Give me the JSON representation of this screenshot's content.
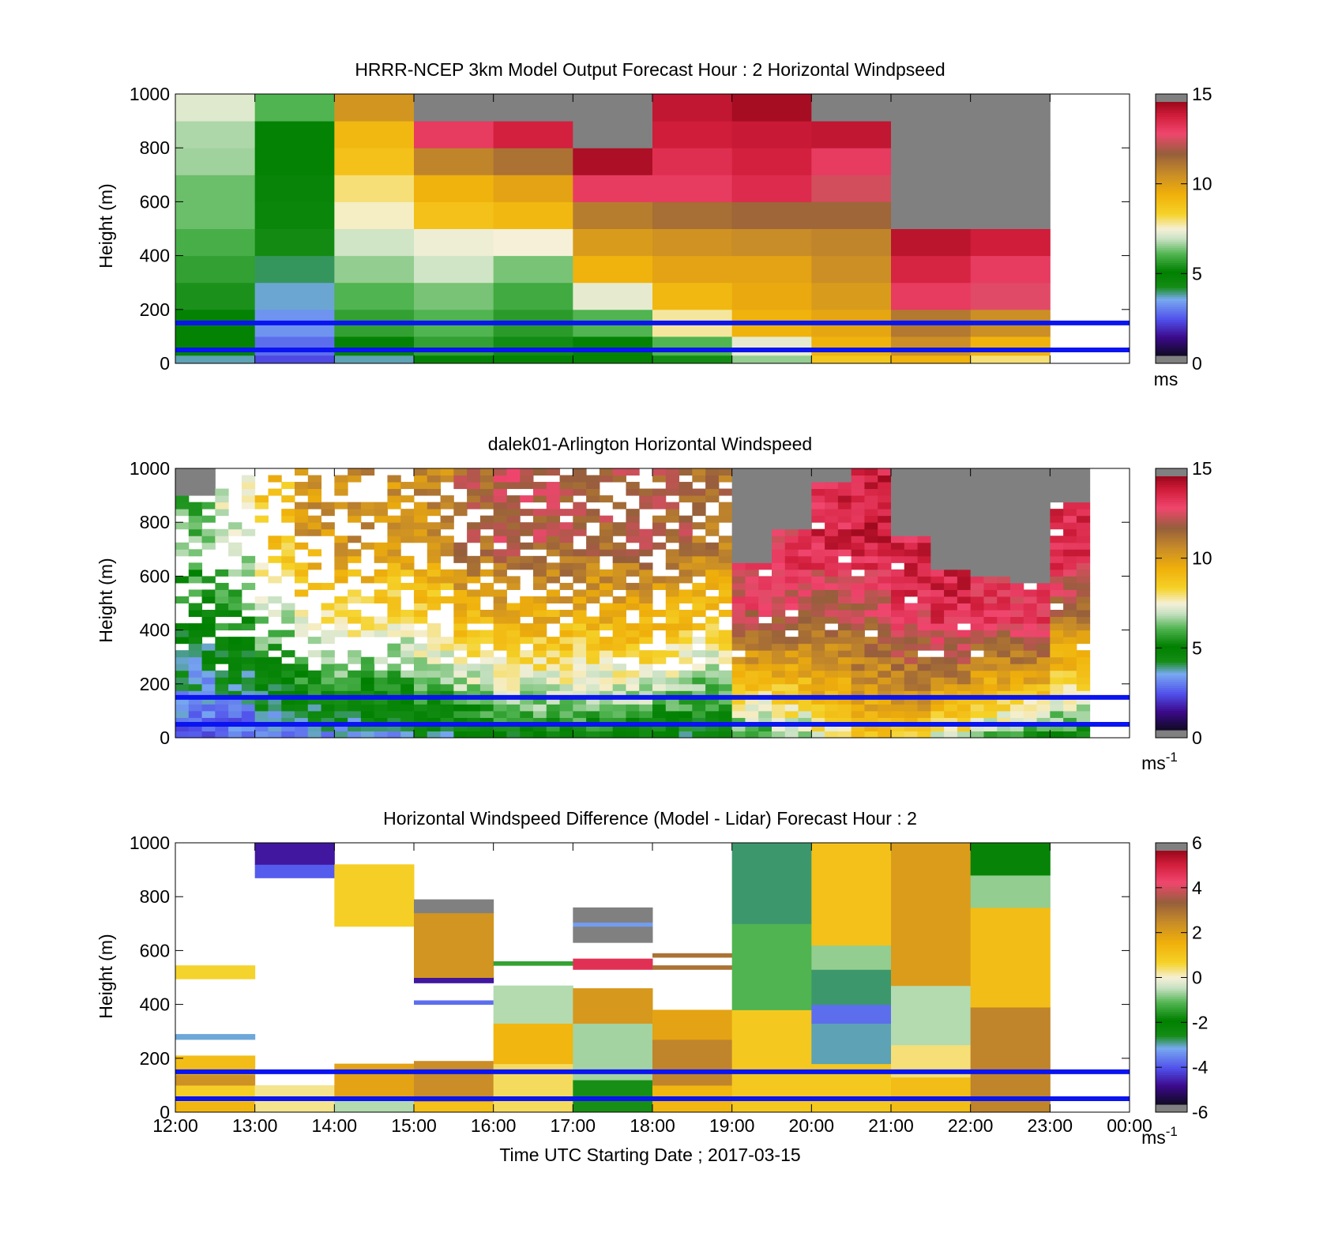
{
  "figure": {
    "xlabel": "Time UTC  Starting Date ; 2017-03-15",
    "xticks": [
      "12:00",
      "13:00",
      "14:00",
      "15:00",
      "16:00",
      "17:00",
      "18:00",
      "19:00",
      "20:00",
      "21:00",
      "22:00",
      "23:00",
      "00:00"
    ],
    "colors": {
      "line_marker": "#0a14f0",
      "missing": "#808080"
    }
  },
  "chart_data": [
    {
      "type": "heatmap",
      "title": "HRRR-NCEP 3km Model Output   Forecast Hour : 2 Horizontal Windpseed",
      "ylabel": "Height (m)",
      "ylim": [
        0,
        1000
      ],
      "yticks": [
        0,
        200,
        400,
        600,
        800,
        1000
      ],
      "xlim_hours": [
        12,
        24
      ],
      "colorbar": {
        "min": 0,
        "max": 15,
        "ticks": [
          0,
          5,
          10,
          15
        ],
        "unit": "ms"
      },
      "height_levels_m": [
        0,
        30,
        100,
        200,
        300,
        400,
        500,
        600,
        700,
        800,
        900,
        1000
      ],
      "columns": [
        {
          "start": "12:00",
          "values": [
            3.5,
            4.8,
            5.0,
            5.3,
            5.6,
            5.9,
            6.2,
            6.2,
            6.6,
            6.7,
            7.2
          ]
        },
        {
          "start": "13:00",
          "values": [
            2.0,
            2.5,
            3.0,
            3.4,
            3.8,
            4.1,
            4.5,
            4.6,
            4.8,
            5.0,
            6.0
          ]
        },
        {
          "start": "14:00",
          "values": [
            3.5,
            5.0,
            5.6,
            6.0,
            6.5,
            7.0,
            7.6,
            8.0,
            9.0,
            9.3,
            10.5
          ]
        },
        {
          "start": "15:00",
          "values": [
            5.0,
            5.6,
            6.0,
            6.3,
            7.0,
            7.4,
            9.0,
            9.5,
            11.0,
            13.5,
            null
          ]
        },
        {
          "start": "16:00",
          "values": [
            5.0,
            5.2,
            5.5,
            5.8,
            6.3,
            7.5,
            9.3,
            10.0,
            11.5,
            14.2,
            null
          ]
        },
        {
          "start": "17:00",
          "values": [
            5.0,
            4.8,
            6.0,
            7.3,
            9.5,
            10.3,
            11.2,
            13.5,
            14.8,
            null,
            null
          ]
        },
        {
          "start": "18:00",
          "values": [
            5.2,
            6.0,
            7.8,
            9.3,
            10.0,
            10.6,
            11.6,
            13.5,
            13.8,
            14.3,
            14.5
          ]
        },
        {
          "start": "19:00",
          "values": [
            6.5,
            7.3,
            9.5,
            9.8,
            10.0,
            10.8,
            11.8,
            13.9,
            14.2,
            14.4,
            14.9
          ]
        },
        {
          "start": "20:00",
          "values": [
            8.8,
            9.5,
            9.9,
            10.3,
            10.7,
            11.0,
            11.8,
            12.8,
            13.5,
            14.5,
            null
          ]
        },
        {
          "start": "21:00",
          "values": [
            9.5,
            10.7,
            11.3,
            13.5,
            14.1,
            14.6,
            null,
            null,
            null,
            null,
            null
          ]
        },
        {
          "start": "22:00",
          "values": [
            8.0,
            9.5,
            10.7,
            13.0,
            13.5,
            14.3,
            null,
            null,
            null,
            null,
            null
          ]
        }
      ]
    },
    {
      "type": "heatmap",
      "title": "dalek01-Arlington  Horizontal Windspeed",
      "ylabel": "Height (m)",
      "ylim": [
        0,
        1000
      ],
      "yticks": [
        0,
        200,
        400,
        600,
        800,
        1000
      ],
      "xlim_hours": [
        12,
        24
      ],
      "colorbar": {
        "min": 0,
        "max": 15,
        "ticks": [
          0,
          5,
          10,
          15
        ],
        "unit": "ms",
        "unit_sup": "-1"
      },
      "observed_profiles": [
        {
          "hour": 12.0,
          "surface": 1.8,
          "top": 6.0,
          "range_top_m": 900,
          "gaps": 0.45
        },
        {
          "hour": 12.5,
          "surface": 2.0,
          "top": 7.0,
          "range_top_m": 1000,
          "gaps": 0.5
        },
        {
          "hour": 13.0,
          "surface": 2.3,
          "top": 9.0,
          "range_top_m": 1000,
          "gaps": 0.55
        },
        {
          "hour": 13.5,
          "surface": 2.5,
          "top": 10.5,
          "range_top_m": 1000,
          "gaps": 0.55
        },
        {
          "hour": 14.0,
          "surface": 2.8,
          "top": 10.8,
          "range_top_m": 1000,
          "gaps": 0.5
        },
        {
          "hour": 14.5,
          "surface": 3.0,
          "top": 10.5,
          "range_top_m": 1000,
          "gaps": 0.4
        },
        {
          "hour": 15.0,
          "surface": 3.6,
          "top": 10.8,
          "range_top_m": 1000,
          "gaps": 0.25
        },
        {
          "hour": 15.5,
          "surface": 4.0,
          "top": 12.0,
          "range_top_m": 1000,
          "gaps": 0.2
        },
        {
          "hour": 16.0,
          "surface": 4.3,
          "top": 12.5,
          "range_top_m": 1000,
          "gaps": 0.25
        },
        {
          "hour": 16.5,
          "surface": 4.5,
          "top": 12.3,
          "range_top_m": 1000,
          "gaps": 0.25
        },
        {
          "hour": 17.0,
          "surface": 4.6,
          "top": 12.0,
          "range_top_m": 1000,
          "gaps": 0.3
        },
        {
          "hour": 17.5,
          "surface": 4.5,
          "top": 12.3,
          "range_top_m": 1000,
          "gaps": 0.3
        },
        {
          "hour": 18.0,
          "surface": 4.0,
          "top": 12.0,
          "range_top_m": 1000,
          "gaps": 0.35
        },
        {
          "hour": 18.5,
          "surface": 3.5,
          "top": 11.5,
          "range_top_m": 1000,
          "gaps": 0.3
        },
        {
          "hour": 19.0,
          "surface": 5.0,
          "top": 13.0,
          "range_top_m": 650,
          "gaps": 0.05
        },
        {
          "hour": 19.5,
          "surface": 6.0,
          "top": 13.5,
          "range_top_m": 780,
          "gaps": 0.05
        },
        {
          "hour": 20.0,
          "surface": 7.5,
          "top": 14.0,
          "range_top_m": 950,
          "gaps": 0.05
        },
        {
          "hour": 20.5,
          "surface": 8.5,
          "top": 14.3,
          "range_top_m": 1000,
          "gaps": 0.05
        },
        {
          "hour": 21.0,
          "surface": 8.5,
          "top": 14.0,
          "range_top_m": 750,
          "gaps": 0.05
        },
        {
          "hour": 21.5,
          "surface": 7.0,
          "top": 14.0,
          "range_top_m": 620,
          "gaps": 0.05
        },
        {
          "hour": 22.0,
          "surface": 5.5,
          "top": 13.5,
          "range_top_m": 600,
          "gaps": 0.05
        },
        {
          "hour": 22.5,
          "surface": 4.8,
          "top": 13.5,
          "range_top_m": 580,
          "gaps": 0.05
        },
        {
          "hour": 23.0,
          "surface": 4.8,
          "top": 13.8,
          "range_top_m": 880,
          "gaps": 0.05
        }
      ]
    },
    {
      "type": "heatmap",
      "title": "Horizontal Windspeed Difference (Model - Lidar) Forecast Hour : 2",
      "ylabel": "Height (m)",
      "ylim": [
        0,
        1000
      ],
      "yticks": [
        0,
        200,
        400,
        600,
        800,
        1000
      ],
      "xlim_hours": [
        12,
        24
      ],
      "colorbar": {
        "min": -6,
        "max": 6,
        "ticks": [
          -6,
          -4,
          -2,
          0,
          2,
          4,
          6
        ],
        "unit": "ms",
        "unit_sup": "-1"
      },
      "segments": [
        {
          "start": "12:00",
          "y0": 0,
          "y1": 40,
          "value": 1.5
        },
        {
          "start": "12:00",
          "y0": 40,
          "y1": 100,
          "value": 0.8
        },
        {
          "start": "12:00",
          "y0": 100,
          "y1": 140,
          "value": 2.5
        },
        {
          "start": "12:00",
          "y0": 140,
          "y1": 210,
          "value": 1.3
        },
        {
          "start": "12:00",
          "y0": 270,
          "y1": 290,
          "value": -3.3
        },
        {
          "start": "12:00",
          "y0": 495,
          "y1": 545,
          "value": 0.7
        },
        {
          "start": "13:00",
          "y0": 0,
          "y1": 100,
          "value": 0.3
        },
        {
          "start": "13:00",
          "y0": 870,
          "y1": 920,
          "value": -4.2
        },
        {
          "start": "13:00",
          "y0": 920,
          "y1": 1000,
          "value": -5.0
        },
        {
          "start": "14:00",
          "y0": 0,
          "y1": 60,
          "value": -0.6
        },
        {
          "start": "14:00",
          "y0": 60,
          "y1": 180,
          "value": 2.0
        },
        {
          "start": "14:00",
          "y0": 690,
          "y1": 920,
          "value": 0.8
        },
        {
          "start": "15:00",
          "y0": 0,
          "y1": 40,
          "value": 1.2
        },
        {
          "start": "15:00",
          "y0": 40,
          "y1": 190,
          "value": 2.6
        },
        {
          "start": "15:00",
          "y0": 400,
          "y1": 415,
          "value": -4.0
        },
        {
          "start": "15:00",
          "y0": 480,
          "y1": 500,
          "value": -5.0
        },
        {
          "start": "15:00",
          "y0": 500,
          "y1": 740,
          "value": 2.4
        },
        {
          "start": "15:00",
          "y0": 740,
          "y1": 790,
          "value": null
        },
        {
          "start": "16:00",
          "y0": 0,
          "y1": 180,
          "value": 0.5
        },
        {
          "start": "16:00",
          "y0": 180,
          "y1": 330,
          "value": 1.5
        },
        {
          "start": "16:00",
          "y0": 330,
          "y1": 470,
          "value": -0.6
        },
        {
          "start": "16:00",
          "y0": 545,
          "y1": 560,
          "value": -1.5
        },
        {
          "start": "17:00",
          "y0": 0,
          "y1": 120,
          "value": -1.8
        },
        {
          "start": "17:00",
          "y0": 120,
          "y1": 330,
          "value": -0.7
        },
        {
          "start": "17:00",
          "y0": 330,
          "y1": 460,
          "value": 2.3
        },
        {
          "start": "17:00",
          "y0": 530,
          "y1": 570,
          "value": 5.0
        },
        {
          "start": "17:00",
          "y0": 630,
          "y1": 690,
          "value": null
        },
        {
          "start": "17:00",
          "y0": 690,
          "y1": 705,
          "value": -3.5
        },
        {
          "start": "17:00",
          "y0": 705,
          "y1": 760,
          "value": null
        },
        {
          "start": "18:00",
          "y0": 0,
          "y1": 100,
          "value": 1.5
        },
        {
          "start": "18:00",
          "y0": 100,
          "y1": 270,
          "value": 2.8
        },
        {
          "start": "18:00",
          "y0": 270,
          "y1": 380,
          "value": 2.0
        },
        {
          "start": "18:00",
          "y0": 530,
          "y1": 545,
          "value": 3.2
        },
        {
          "start": "18:00",
          "y0": 575,
          "y1": 590,
          "value": 3.2
        },
        {
          "start": "19:00",
          "y0": 0,
          "y1": 380,
          "value": 1.0
        },
        {
          "start": "19:00",
          "y0": 380,
          "y1": 700,
          "value": -1.2
        },
        {
          "start": "19:00",
          "y0": 700,
          "y1": 1000,
          "value": -3.0
        },
        {
          "start": "20:00",
          "y0": 0,
          "y1": 180,
          "value": 1.0
        },
        {
          "start": "20:00",
          "y0": 180,
          "y1": 330,
          "value": -3.2
        },
        {
          "start": "20:00",
          "y0": 330,
          "y1": 400,
          "value": -4.0
        },
        {
          "start": "20:00",
          "y0": 400,
          "y1": 530,
          "value": -3.0
        },
        {
          "start": "20:00",
          "y0": 530,
          "y1": 620,
          "value": -0.8
        },
        {
          "start": "20:00",
          "y0": 620,
          "y1": 1000,
          "value": 1.2
        },
        {
          "start": "21:00",
          "y0": 0,
          "y1": 130,
          "value": 1.3
        },
        {
          "start": "21:00",
          "y0": 130,
          "y1": 250,
          "value": 0.4
        },
        {
          "start": "21:00",
          "y0": 250,
          "y1": 470,
          "value": -0.6
        },
        {
          "start": "21:00",
          "y0": 470,
          "y1": 1000,
          "value": 2.2
        },
        {
          "start": "22:00",
          "y0": 0,
          "y1": 390,
          "value": 2.8
        },
        {
          "start": "22:00",
          "y0": 390,
          "y1": 760,
          "value": 1.3
        },
        {
          "start": "22:00",
          "y0": 760,
          "y1": 880,
          "value": -0.8
        },
        {
          "start": "22:00",
          "y0": 880,
          "y1": 1000,
          "value": -2.3
        }
      ]
    }
  ],
  "reference_lines_m": [
    50,
    150
  ]
}
